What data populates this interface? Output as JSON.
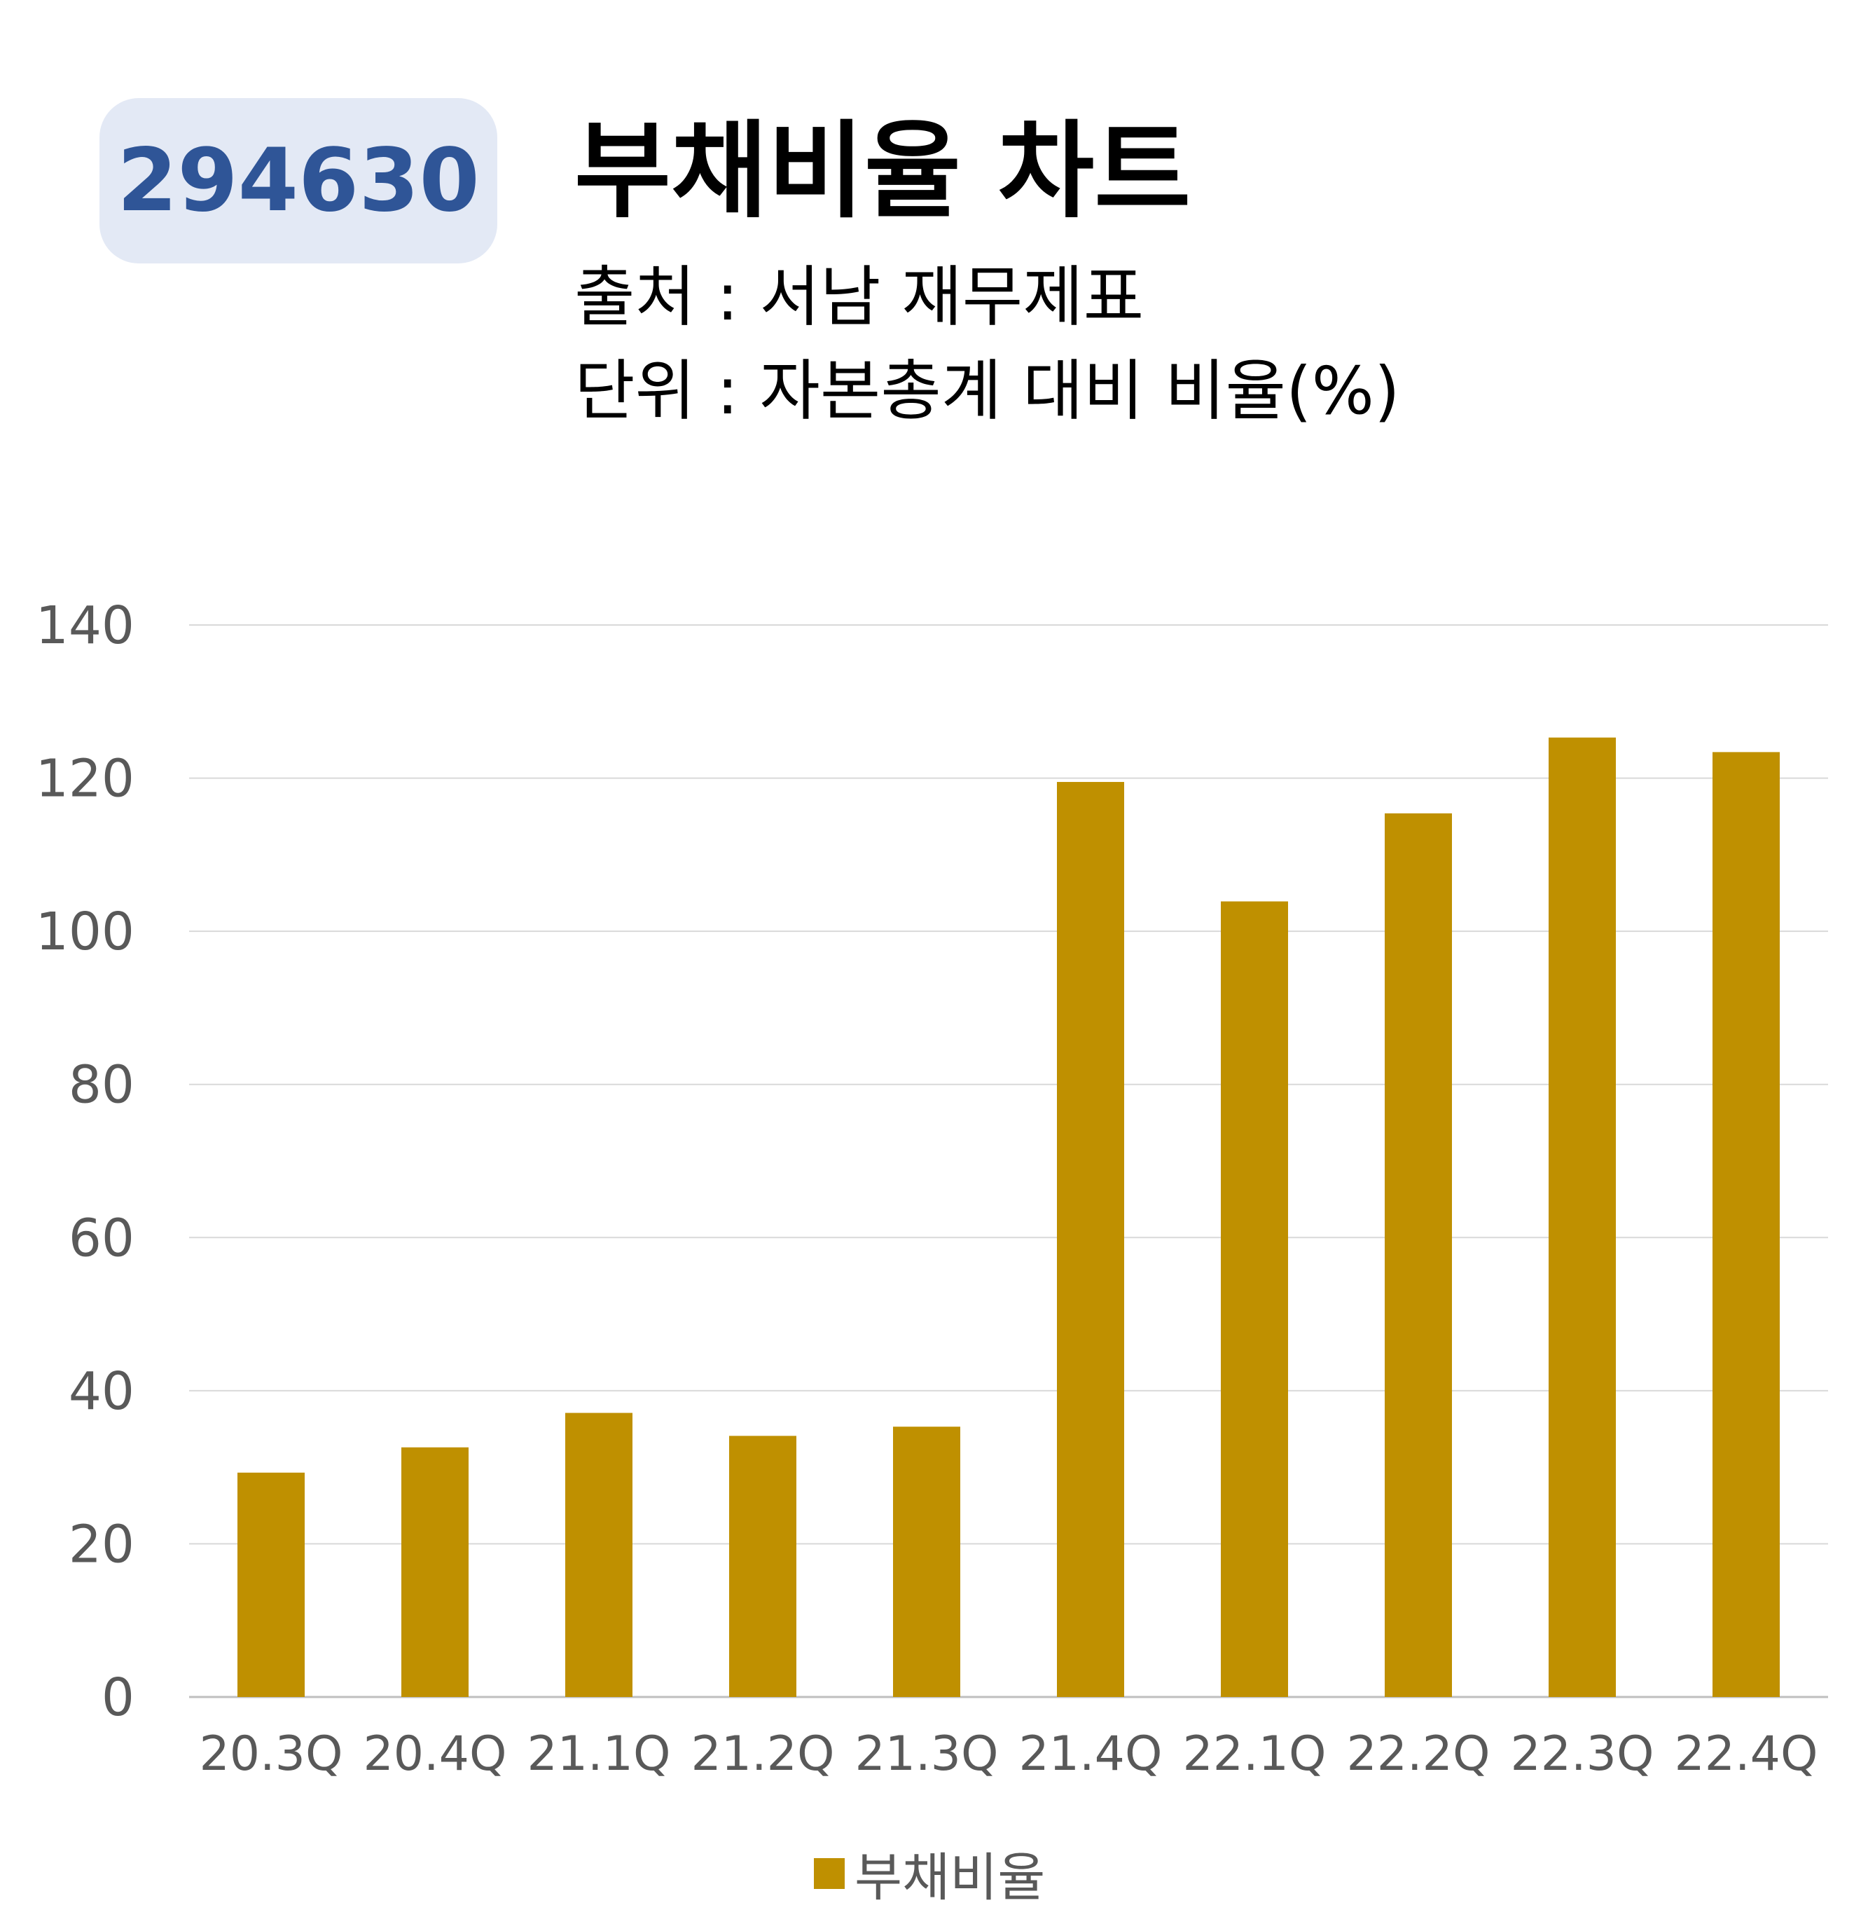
{
  "header": {
    "code": "294630",
    "title": "부채비율 차트",
    "source": "출처 : 서남 재무제표",
    "unit": "단위 : 자본총계 대비 비율(%)"
  },
  "chart_data": {
    "type": "bar",
    "categories": [
      "20.3Q",
      "20.4Q",
      "21.1Q",
      "21.2Q",
      "21.3Q",
      "21.4Q",
      "22.1Q",
      "22.2Q",
      "22.3Q",
      "22.4Q"
    ],
    "series": [
      {
        "name": "부채비율",
        "values": [
          29.3,
          32.6,
          37.1,
          34.1,
          35.3,
          119.5,
          103.9,
          115.4,
          125.3,
          123.4
        ]
      }
    ],
    "ylim": [
      0,
      140
    ],
    "yticks": [
      0,
      20,
      40,
      60,
      80,
      100,
      120,
      140
    ],
    "grid": true,
    "legend": "bottom",
    "color": "#bf9000"
  }
}
